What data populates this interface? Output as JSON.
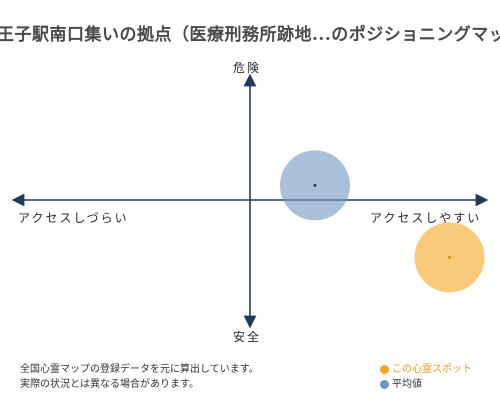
{
  "title": "王子駅南口集いの拠点（医療刑務所跡地...のポジショニングマップ",
  "axes": {
    "top": "危険",
    "bottom": "安全",
    "left": "アクセスしづらい",
    "right": "アクセスしやすい"
  },
  "notes": [
    "全国心霊マップの登録データを元に算出しています。",
    "実際の状況とは異なる場合があります。"
  ],
  "legend": [
    {
      "label": "この心霊スポット",
      "color": "#f5a623"
    },
    {
      "label": "平均値",
      "color": "#6f94c2"
    }
  ],
  "chart_data": {
    "type": "scatter",
    "x_axis": {
      "negative": "アクセスしづらい",
      "positive": "アクセスしやすい",
      "range": [
        -1,
        1
      ]
    },
    "y_axis": {
      "negative": "安全",
      "positive": "危険",
      "range": [
        -1,
        1
      ]
    },
    "series": [
      {
        "name": "この心霊スポット",
        "color": "#f5a623",
        "x": 0.86,
        "y": -0.47
      },
      {
        "name": "平均値",
        "color": "#6f94c2",
        "x": 0.28,
        "y": 0.12
      }
    ]
  }
}
